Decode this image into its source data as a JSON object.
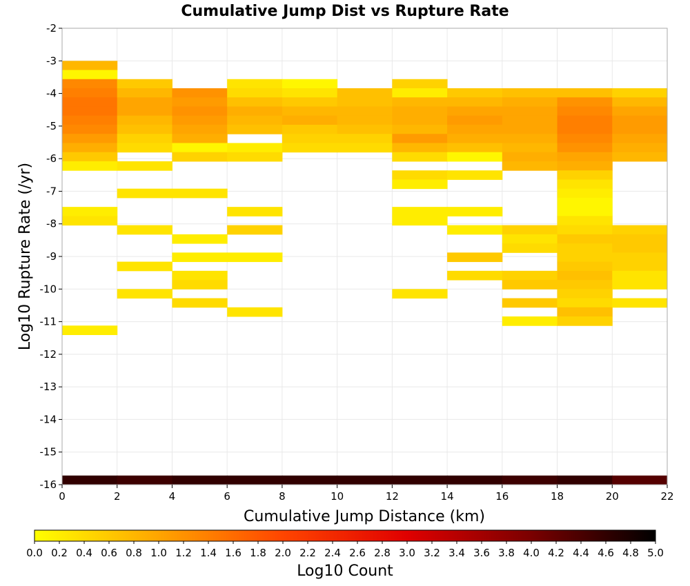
{
  "chart_data": {
    "type": "heatmap",
    "title": "Cumulative Jump Dist vs Rupture Rate",
    "xlabel": "Cumulative Jump Distance (km)",
    "ylabel": "Log10 Rupture Rate (/yr)",
    "xlim": [
      0,
      22
    ],
    "ylim": [
      -16,
      -2
    ],
    "x_ticks": [
      "0",
      "2",
      "4",
      "6",
      "8",
      "10",
      "12",
      "14",
      "16",
      "18",
      "20",
      "22"
    ],
    "y_ticks": [
      "-2",
      "-3",
      "-4",
      "-5",
      "-6",
      "-7",
      "-8",
      "-9",
      "-10",
      "-11",
      "-12",
      "-13",
      "-14",
      "-15",
      "-16"
    ],
    "x_bin_width": 2,
    "y_bin_height": 0.28,
    "grid": true,
    "colorbar": {
      "label": "Log10 Count",
      "range": [
        0,
        5
      ],
      "ticks": [
        "0.0",
        "0.2",
        "0.4",
        "0.6",
        "0.8",
        "1.0",
        "1.2",
        "1.4",
        "1.6",
        "1.8",
        "2.0",
        "2.2",
        "2.4",
        "2.6",
        "2.8",
        "3.0",
        "3.2",
        "3.4",
        "3.6",
        "3.8",
        "4.0",
        "4.2",
        "4.4",
        "4.6",
        "4.8",
        "5.0"
      ],
      "colors": [
        "#ffff00",
        "#ffa500",
        "#ff4500",
        "#e00000",
        "#7a0000",
        "#000000"
      ]
    },
    "cells": [
      {
        "x": 0,
        "y": -3.14,
        "v": 0.8
      },
      {
        "x": 0,
        "y": -3.42,
        "v": 0.1
      },
      {
        "x": 0,
        "y": -3.7,
        "v": 1.3
      },
      {
        "x": 0,
        "y": -3.98,
        "v": 1.4
      },
      {
        "x": 0,
        "y": -4.26,
        "v": 1.5
      },
      {
        "x": 0,
        "y": -4.54,
        "v": 1.5
      },
      {
        "x": 0,
        "y": -4.82,
        "v": 1.4
      },
      {
        "x": 0,
        "y": -5.1,
        "v": 1.3
      },
      {
        "x": 0,
        "y": -5.38,
        "v": 1.1
      },
      {
        "x": 0,
        "y": -5.66,
        "v": 0.9
      },
      {
        "x": 0,
        "y": -5.94,
        "v": 0.6
      },
      {
        "x": 0,
        "y": -6.22,
        "v": 0.2
      },
      {
        "x": 0,
        "y": -7.62,
        "v": 0.2
      },
      {
        "x": 0,
        "y": -7.9,
        "v": 0.3
      },
      {
        "x": 0,
        "y": -11.26,
        "v": 0.2
      },
      {
        "x": 2,
        "y": -3.7,
        "v": 0.6
      },
      {
        "x": 2,
        "y": -3.98,
        "v": 0.8
      },
      {
        "x": 2,
        "y": -4.26,
        "v": 1.0
      },
      {
        "x": 2,
        "y": -4.54,
        "v": 1.0
      },
      {
        "x": 2,
        "y": -4.82,
        "v": 0.8
      },
      {
        "x": 2,
        "y": -5.1,
        "v": 0.7
      },
      {
        "x": 2,
        "y": -5.38,
        "v": 0.5
      },
      {
        "x": 2,
        "y": -5.66,
        "v": 0.4
      },
      {
        "x": 2,
        "y": -6.22,
        "v": 0.3
      },
      {
        "x": 2,
        "y": -7.06,
        "v": 0.3
      },
      {
        "x": 2,
        "y": -8.18,
        "v": 0.3
      },
      {
        "x": 2,
        "y": -9.3,
        "v": 0.3
      },
      {
        "x": 2,
        "y": -10.14,
        "v": 0.3
      },
      {
        "x": 4,
        "y": -3.98,
        "v": 1.2
      },
      {
        "x": 4,
        "y": -4.26,
        "v": 1.1
      },
      {
        "x": 4,
        "y": -4.54,
        "v": 1.2
      },
      {
        "x": 4,
        "y": -4.82,
        "v": 1.1
      },
      {
        "x": 4,
        "y": -5.1,
        "v": 1.0
      },
      {
        "x": 4,
        "y": -5.38,
        "v": 0.9
      },
      {
        "x": 4,
        "y": -5.66,
        "v": 0.1
      },
      {
        "x": 4,
        "y": -5.94,
        "v": 0.5
      },
      {
        "x": 4,
        "y": -7.06,
        "v": 0.3
      },
      {
        "x": 4,
        "y": -8.46,
        "v": 0.2
      },
      {
        "x": 4,
        "y": -9.02,
        "v": 0.2
      },
      {
        "x": 4,
        "y": -9.58,
        "v": 0.3
      },
      {
        "x": 4,
        "y": -9.86,
        "v": 0.4
      },
      {
        "x": 4,
        "y": -10.42,
        "v": 0.4
      },
      {
        "x": 6,
        "y": -3.7,
        "v": 0.3
      },
      {
        "x": 6,
        "y": -3.98,
        "v": 0.4
      },
      {
        "x": 6,
        "y": -4.26,
        "v": 0.7
      },
      {
        "x": 6,
        "y": -4.54,
        "v": 0.9
      },
      {
        "x": 6,
        "y": -4.82,
        "v": 0.8
      },
      {
        "x": 6,
        "y": -5.1,
        "v": 0.7
      },
      {
        "x": 6,
        "y": -5.66,
        "v": 0.2
      },
      {
        "x": 6,
        "y": -5.94,
        "v": 0.4
      },
      {
        "x": 6,
        "y": -7.62,
        "v": 0.3
      },
      {
        "x": 6,
        "y": -8.18,
        "v": 0.5
      },
      {
        "x": 6,
        "y": -9.02,
        "v": 0.2
      },
      {
        "x": 6,
        "y": -10.7,
        "v": 0.3
      },
      {
        "x": 8,
        "y": -3.7,
        "v": 0.1
      },
      {
        "x": 8,
        "y": -3.98,
        "v": 0.3
      },
      {
        "x": 8,
        "y": -4.26,
        "v": 0.6
      },
      {
        "x": 8,
        "y": -4.54,
        "v": 0.8
      },
      {
        "x": 8,
        "y": -4.82,
        "v": 0.9
      },
      {
        "x": 8,
        "y": -5.1,
        "v": 0.6
      },
      {
        "x": 8,
        "y": -5.38,
        "v": 0.5
      },
      {
        "x": 8,
        "y": -5.66,
        "v": 0.4
      },
      {
        "x": 10,
        "y": -3.98,
        "v": 0.7
      },
      {
        "x": 10,
        "y": -4.26,
        "v": 0.7
      },
      {
        "x": 10,
        "y": -4.54,
        "v": 0.8
      },
      {
        "x": 10,
        "y": -4.82,
        "v": 0.8
      },
      {
        "x": 10,
        "y": -5.1,
        "v": 0.7
      },
      {
        "x": 10,
        "y": -5.38,
        "v": 0.5
      },
      {
        "x": 10,
        "y": -5.66,
        "v": 0.4
      },
      {
        "x": 12,
        "y": -3.7,
        "v": 0.5
      },
      {
        "x": 12,
        "y": -3.98,
        "v": 0.2
      },
      {
        "x": 12,
        "y": -4.26,
        "v": 0.8
      },
      {
        "x": 12,
        "y": -4.54,
        "v": 0.9
      },
      {
        "x": 12,
        "y": -4.82,
        "v": 0.9
      },
      {
        "x": 12,
        "y": -5.1,
        "v": 0.8
      },
      {
        "x": 12,
        "y": -5.38,
        "v": 1.1
      },
      {
        "x": 12,
        "y": -5.66,
        "v": 0.8
      },
      {
        "x": 12,
        "y": -5.94,
        "v": 0.4
      },
      {
        "x": 12,
        "y": -6.5,
        "v": 0.4
      },
      {
        "x": 12,
        "y": -6.78,
        "v": 0.2
      },
      {
        "x": 12,
        "y": -7.62,
        "v": 0.2
      },
      {
        "x": 12,
        "y": -7.9,
        "v": 0.2
      },
      {
        "x": 12,
        "y": -10.14,
        "v": 0.3
      },
      {
        "x": 14,
        "y": -3.98,
        "v": 0.6
      },
      {
        "x": 14,
        "y": -4.26,
        "v": 0.8
      },
      {
        "x": 14,
        "y": -4.54,
        "v": 1.0
      },
      {
        "x": 14,
        "y": -4.82,
        "v": 1.1
      },
      {
        "x": 14,
        "y": -5.1,
        "v": 1.0
      },
      {
        "x": 14,
        "y": -5.38,
        "v": 0.9
      },
      {
        "x": 14,
        "y": -5.66,
        "v": 0.7
      },
      {
        "x": 14,
        "y": -5.94,
        "v": 0.1
      },
      {
        "x": 14,
        "y": -6.5,
        "v": 0.3
      },
      {
        "x": 14,
        "y": -7.62,
        "v": 0.2
      },
      {
        "x": 14,
        "y": -8.18,
        "v": 0.2
      },
      {
        "x": 14,
        "y": -9.02,
        "v": 0.6
      },
      {
        "x": 14,
        "y": -9.58,
        "v": 0.4
      },
      {
        "x": 16,
        "y": -3.98,
        "v": 0.7
      },
      {
        "x": 16,
        "y": -4.26,
        "v": 0.9
      },
      {
        "x": 16,
        "y": -4.54,
        "v": 1.0
      },
      {
        "x": 16,
        "y": -4.82,
        "v": 1.0
      },
      {
        "x": 16,
        "y": -5.1,
        "v": 1.0
      },
      {
        "x": 16,
        "y": -5.38,
        "v": 0.9
      },
      {
        "x": 16,
        "y": -5.66,
        "v": 0.8
      },
      {
        "x": 16,
        "y": -5.94,
        "v": 0.9
      },
      {
        "x": 16,
        "y": -6.22,
        "v": 0.8
      },
      {
        "x": 16,
        "y": -8.18,
        "v": 0.5
      },
      {
        "x": 16,
        "y": -8.46,
        "v": 0.3
      },
      {
        "x": 16,
        "y": -8.74,
        "v": 0.4
      },
      {
        "x": 16,
        "y": -9.58,
        "v": 0.5
      },
      {
        "x": 16,
        "y": -9.86,
        "v": 0.6
      },
      {
        "x": 16,
        "y": -10.42,
        "v": 0.6
      },
      {
        "x": 16,
        "y": -10.98,
        "v": 0.2
      },
      {
        "x": 18,
        "y": -3.98,
        "v": 0.7
      },
      {
        "x": 18,
        "y": -4.26,
        "v": 1.2
      },
      {
        "x": 18,
        "y": -4.54,
        "v": 1.3
      },
      {
        "x": 18,
        "y": -4.82,
        "v": 1.4
      },
      {
        "x": 18,
        "y": -5.1,
        "v": 1.4
      },
      {
        "x": 18,
        "y": -5.38,
        "v": 1.3
      },
      {
        "x": 18,
        "y": -5.66,
        "v": 1.2
      },
      {
        "x": 18,
        "y": -5.94,
        "v": 1.0
      },
      {
        "x": 18,
        "y": -6.22,
        "v": 0.9
      },
      {
        "x": 18,
        "y": -6.5,
        "v": 0.5
      },
      {
        "x": 18,
        "y": -6.78,
        "v": 0.3
      },
      {
        "x": 18,
        "y": -7.06,
        "v": 0.2
      },
      {
        "x": 18,
        "y": -7.34,
        "v": 0.1
      },
      {
        "x": 18,
        "y": -7.62,
        "v": 0.1
      },
      {
        "x": 18,
        "y": -7.9,
        "v": 0.3
      },
      {
        "x": 18,
        "y": -8.18,
        "v": 0.4
      },
      {
        "x": 18,
        "y": -8.46,
        "v": 0.6
      },
      {
        "x": 18,
        "y": -8.74,
        "v": 0.5
      },
      {
        "x": 18,
        "y": -9.02,
        "v": 0.5
      },
      {
        "x": 18,
        "y": -9.3,
        "v": 0.6
      },
      {
        "x": 18,
        "y": -9.58,
        "v": 0.7
      },
      {
        "x": 18,
        "y": -9.86,
        "v": 0.6
      },
      {
        "x": 18,
        "y": -10.14,
        "v": 0.5
      },
      {
        "x": 18,
        "y": -10.42,
        "v": 0.4
      },
      {
        "x": 18,
        "y": -10.7,
        "v": 0.7
      },
      {
        "x": 18,
        "y": -10.98,
        "v": 0.5
      },
      {
        "x": 20,
        "y": -3.98,
        "v": 0.5
      },
      {
        "x": 20,
        "y": -4.26,
        "v": 0.8
      },
      {
        "x": 20,
        "y": -4.54,
        "v": 1.0
      },
      {
        "x": 20,
        "y": -4.82,
        "v": 1.1
      },
      {
        "x": 20,
        "y": -5.1,
        "v": 1.1
      },
      {
        "x": 20,
        "y": -5.38,
        "v": 1.0
      },
      {
        "x": 20,
        "y": -5.66,
        "v": 0.9
      },
      {
        "x": 20,
        "y": -5.94,
        "v": 0.8
      },
      {
        "x": 20,
        "y": -8.18,
        "v": 0.5
      },
      {
        "x": 20,
        "y": -8.46,
        "v": 0.6
      },
      {
        "x": 20,
        "y": -8.74,
        "v": 0.6
      },
      {
        "x": 20,
        "y": -9.02,
        "v": 0.5
      },
      {
        "x": 20,
        "y": -9.3,
        "v": 0.5
      },
      {
        "x": 20,
        "y": -9.58,
        "v": 0.3
      },
      {
        "x": 20,
        "y": -9.86,
        "v": 0.3
      },
      {
        "x": 20,
        "y": -10.42,
        "v": 0.3
      },
      {
        "x": 0,
        "y": -15.86,
        "v": 4.6
      },
      {
        "x": 2,
        "y": -15.86,
        "v": 4.5
      },
      {
        "x": 4,
        "y": -15.86,
        "v": 4.6
      },
      {
        "x": 6,
        "y": -15.86,
        "v": 4.6
      },
      {
        "x": 8,
        "y": -15.86,
        "v": 4.6
      },
      {
        "x": 10,
        "y": -15.86,
        "v": 4.6
      },
      {
        "x": 12,
        "y": -15.86,
        "v": 4.6
      },
      {
        "x": 14,
        "y": -15.86,
        "v": 4.6
      },
      {
        "x": 16,
        "y": -15.86,
        "v": 4.5
      },
      {
        "x": 18,
        "y": -15.86,
        "v": 4.6
      },
      {
        "x": 20,
        "y": -15.86,
        "v": 4.3
      }
    ]
  }
}
